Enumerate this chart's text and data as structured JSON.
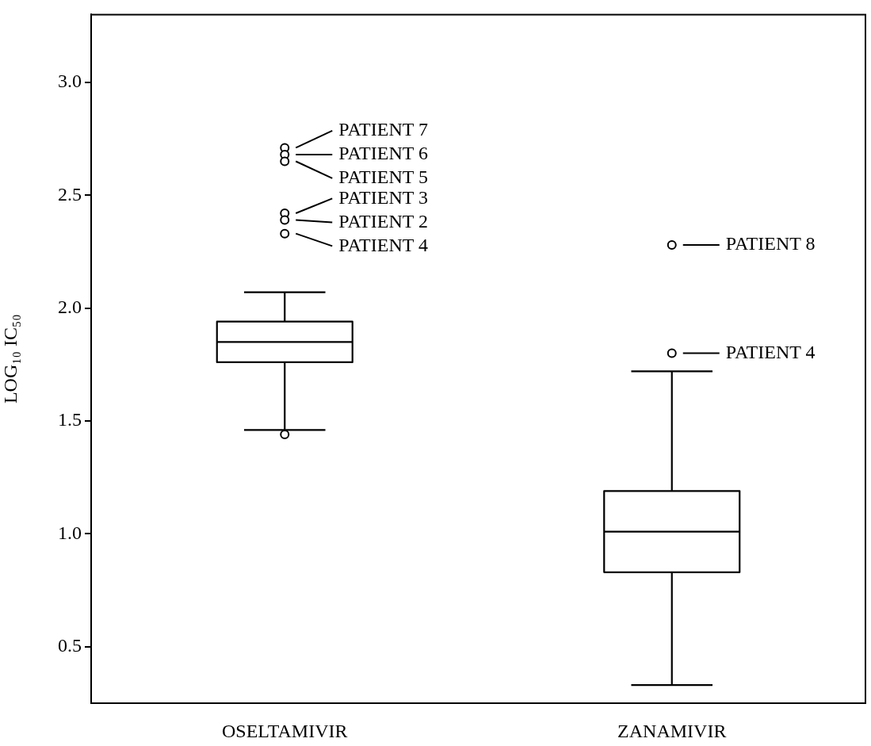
{
  "chart_data": {
    "type": "box",
    "ylabel": "LOG₁₀ IC₅₀",
    "categories": [
      "OSELTAMIVIR",
      "ZANAMIVIR"
    ],
    "boxes": [
      {
        "low": 1.46,
        "q1": 1.76,
        "median": 1.85,
        "q3": 1.94,
        "high": 2.07
      },
      {
        "low": 0.33,
        "q1": 0.83,
        "median": 1.01,
        "q3": 1.19,
        "high": 1.72
      }
    ],
    "series": [
      {
        "type": "scatter",
        "color": "#000000",
        "x": [
          "OSELTAMIVIR",
          "OSELTAMIVIR",
          "OSELTAMIVIR",
          "OSELTAMIVIR",
          "OSELTAMIVIR",
          "OSELTAMIVIR",
          "OSELTAMIVIR",
          "ZANAMIVIR",
          "ZANAMIVIR"
        ],
        "values": [
          2.71,
          2.68,
          2.65,
          2.42,
          2.39,
          2.33,
          1.44,
          2.28,
          1.8
        ]
      }
    ],
    "marker": "circle",
    "ylim": [
      0.25,
      3.3
    ],
    "yticks": [
      {
        "value": 0.5,
        "label": "0.5"
      },
      {
        "value": 1.0,
        "label": "1.0"
      },
      {
        "value": 1.5,
        "label": "1.5"
      },
      {
        "value": 2.0,
        "label": "2.0"
      },
      {
        "value": 2.5,
        "label": "2.5"
      },
      {
        "value": 3.0,
        "label": "3.0"
      }
    ],
    "annotations": [
      {
        "text": "PATIENT 7",
        "x": "OSELTAMIVIR",
        "y": 2.71
      },
      {
        "text": "PATIENT 6",
        "x": "OSELTAMIVIR",
        "y": 2.68
      },
      {
        "text": "PATIENT 5",
        "x": "OSELTAMIVIR",
        "y": 2.65
      },
      {
        "text": "PATIENT 3",
        "x": "OSELTAMIVIR",
        "y": 2.42
      },
      {
        "text": "PATIENT 2",
        "x": "OSELTAMIVIR",
        "y": 2.39
      },
      {
        "text": "PATIENT 4",
        "x": "OSELTAMIVIR",
        "y": 2.33
      },
      {
        "text": "PATIENT 8",
        "x": "ZANAMIVIR",
        "y": 2.28
      },
      {
        "text": "PATIENT 4",
        "x": "ZANAMIVIR",
        "y": 1.8
      }
    ],
    "grid": false,
    "legend": false
  }
}
